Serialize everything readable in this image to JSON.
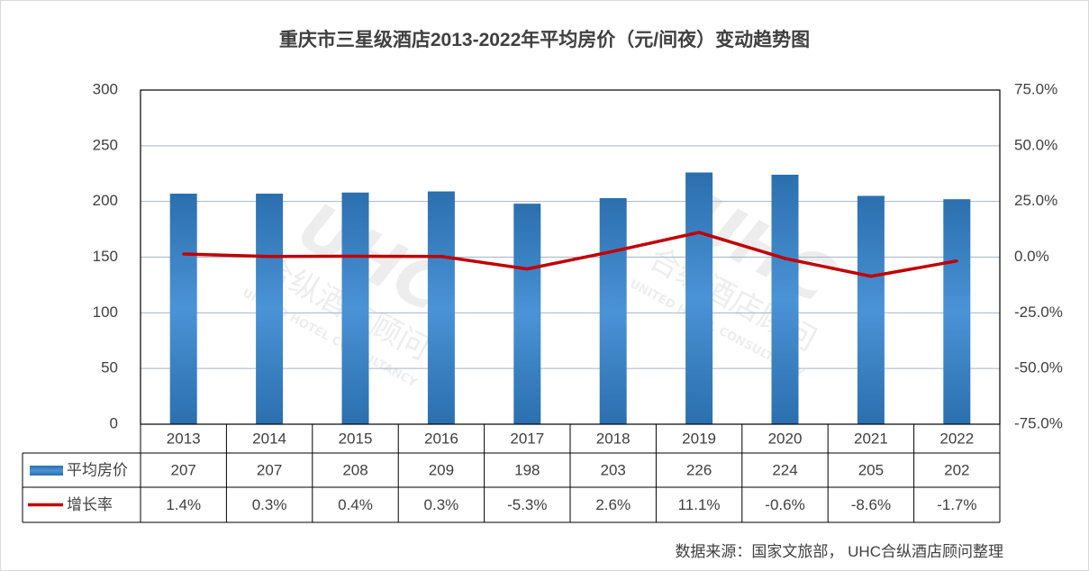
{
  "chart_data": {
    "type": "bar",
    "title": "重庆市三星级酒店2013-2022年平均房价（元/间夜）变动趋势图",
    "categories": [
      "2013",
      "2014",
      "2015",
      "2016",
      "2017",
      "2018",
      "2019",
      "2020",
      "2021",
      "2022"
    ],
    "series": [
      {
        "name": "平均房价",
        "type": "bar",
        "axis": "left",
        "values": [
          207,
          207,
          208,
          209,
          198,
          203,
          226,
          224,
          205,
          202
        ],
        "labels": [
          "207",
          "207",
          "208",
          "209",
          "198",
          "203",
          "226",
          "224",
          "205",
          "202"
        ],
        "color": "#2e75b6"
      },
      {
        "name": "增长率",
        "type": "line",
        "axis": "right",
        "values": [
          1.4,
          0.3,
          0.4,
          0.3,
          -5.3,
          2.6,
          11.1,
          -0.6,
          -8.6,
          -1.7
        ],
        "labels": [
          "1.4%",
          "0.3%",
          "0.4%",
          "0.3%",
          "-5.3%",
          "2.6%",
          "11.1%",
          "-0.6%",
          "-8.6%",
          "-1.7%"
        ],
        "color": "#c00000"
      }
    ],
    "y_left": {
      "range": [
        0,
        300
      ],
      "ticks": [
        "0",
        "50",
        "100",
        "150",
        "200",
        "250",
        "300"
      ]
    },
    "y_right": {
      "range": [
        -75,
        75
      ],
      "ticks": [
        "-75.0%",
        "-50.0%",
        "-25.0%",
        "0.0%",
        "25.0%",
        "50.0%",
        "75.0%"
      ]
    },
    "grid": true,
    "legend": "data-table",
    "source": "数据来源：国家文旅部， UHC合纵酒店顾问整理",
    "watermark": "UHC 合纵酒店顾问 UNITED HOTEL CONSULTANCY"
  }
}
